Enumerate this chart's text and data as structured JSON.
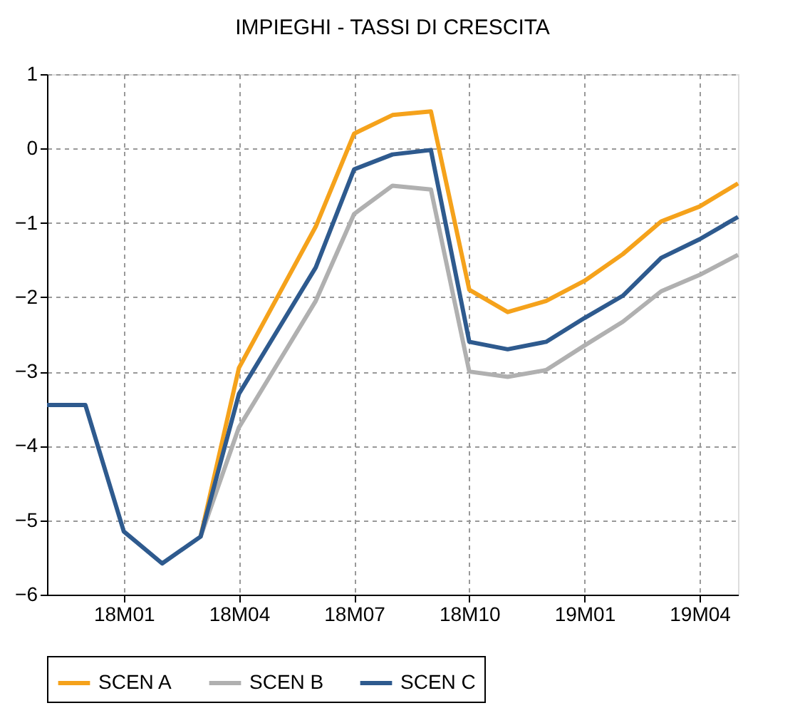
{
  "chart_data": {
    "type": "line",
    "title": "IMPIEGHI - TASSI DI CRESCITA",
    "categories": [
      null,
      null,
      "18M01",
      null,
      null,
      "18M04",
      null,
      null,
      "18M07",
      null,
      null,
      "18M10",
      null,
      null,
      "19M01",
      null,
      null,
      "19M04",
      null
    ],
    "series": [
      {
        "name": "SCEN A",
        "color": "#f5a21b",
        "values": [
          null,
          null,
          null,
          null,
          -5.22,
          -2.95,
          -2.0,
          -1.05,
          0.2,
          0.45,
          0.5,
          -1.9,
          -2.2,
          -2.05,
          -1.78,
          -1.42,
          -0.98,
          -0.78,
          -0.47
        ]
      },
      {
        "name": "SCEN B",
        "color": "#b0b0b0",
        "values": [
          null,
          null,
          null,
          null,
          -5.22,
          -3.75,
          -2.9,
          -2.05,
          -0.88,
          -0.5,
          -0.55,
          -3.0,
          -3.07,
          -2.98,
          -2.65,
          -2.33,
          -1.92,
          -1.7,
          -1.43
        ]
      },
      {
        "name": "SCEN C",
        "color": "#2e5a8e",
        "values": [
          -3.45,
          -3.45,
          -5.15,
          -5.58,
          -5.22,
          -3.3,
          -2.45,
          -1.6,
          -0.28,
          -0.08,
          -0.02,
          -2.6,
          -2.7,
          -2.6,
          -2.28,
          -1.98,
          -1.47,
          -1.22,
          -0.92
        ]
      }
    ],
    "ylim": [
      -6,
      1
    ],
    "yticks": [
      -6,
      -5,
      -4,
      -3,
      -2,
      -1,
      0,
      1
    ],
    "grid": true,
    "legend": "bottom",
    "marker": "none",
    "line_style": "solid"
  }
}
